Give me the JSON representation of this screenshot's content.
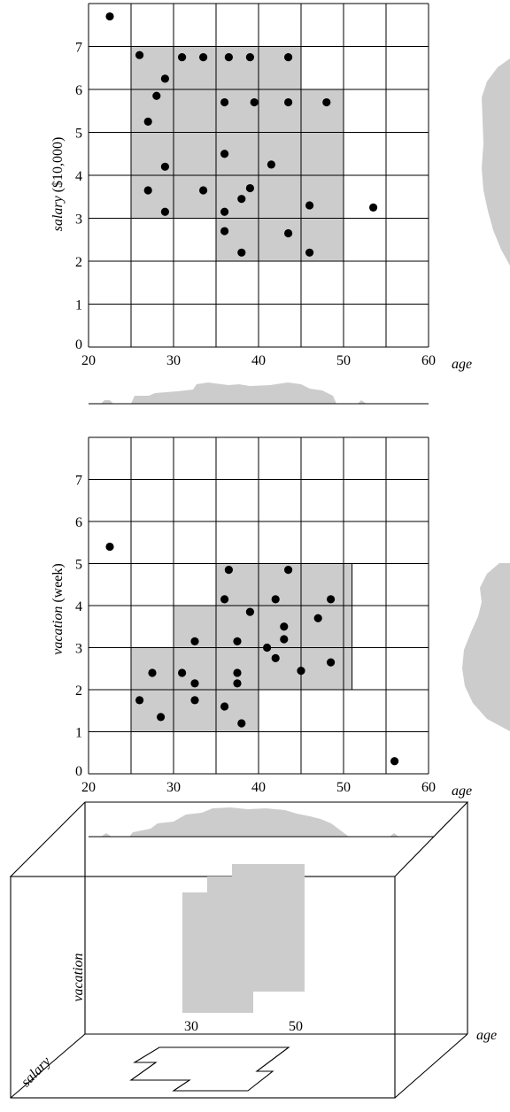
{
  "chart_data": [
    {
      "type": "scatter",
      "xlim": [
        20,
        60
      ],
      "ylim": [
        0,
        8
      ],
      "x_ticks": [
        20,
        30,
        40,
        50,
        60
      ],
      "y_ticks": [
        0,
        1,
        2,
        3,
        4,
        5,
        6,
        7
      ],
      "xlabel": "age",
      "ylabel": {
        "italic": "salary",
        "rest": " ($10,000)"
      },
      "points": [
        [
          22.5,
          7.7
        ],
        [
          26,
          6.8
        ],
        [
          31,
          6.75
        ],
        [
          33.5,
          6.75
        ],
        [
          36.5,
          6.75
        ],
        [
          39,
          6.75
        ],
        [
          43.5,
          6.75
        ],
        [
          29,
          6.25
        ],
        [
          28,
          5.85
        ],
        [
          27,
          5.25
        ],
        [
          36,
          5.7
        ],
        [
          39.5,
          5.7
        ],
        [
          43.5,
          5.7
        ],
        [
          48,
          5.7
        ],
        [
          36,
          4.5
        ],
        [
          41.5,
          4.25
        ],
        [
          29,
          4.2
        ],
        [
          27,
          3.65
        ],
        [
          33.5,
          3.65
        ],
        [
          39,
          3.7
        ],
        [
          38,
          3.45
        ],
        [
          29,
          3.15
        ],
        [
          36,
          3.15
        ],
        [
          46,
          3.3
        ],
        [
          53.5,
          3.25
        ],
        [
          36,
          2.7
        ],
        [
          43.5,
          2.65
        ],
        [
          38,
          2.2
        ],
        [
          46,
          2.2
        ]
      ],
      "regions": [
        {
          "x": [
            25,
            35
          ],
          "y": [
            3,
            7
          ]
        },
        {
          "x": [
            35,
            45
          ],
          "y": [
            6,
            7
          ]
        },
        {
          "x": [
            35,
            50
          ],
          "y": [
            2,
            6
          ]
        }
      ]
    },
    {
      "type": "scatter",
      "xlim": [
        20,
        60
      ],
      "ylim": [
        0,
        8
      ],
      "x_ticks": [
        20,
        30,
        40,
        50,
        60
      ],
      "y_ticks": [
        0,
        1,
        2,
        3,
        4,
        5,
        6,
        7
      ],
      "xlabel": "age",
      "ylabel": {
        "italic": "vacation",
        "rest": " (week)"
      },
      "points": [
        [
          22.5,
          5.4
        ],
        [
          36.5,
          4.85
        ],
        [
          43.5,
          4.85
        ],
        [
          36,
          4.15
        ],
        [
          42,
          4.15
        ],
        [
          48.5,
          4.15
        ],
        [
          39,
          3.85
        ],
        [
          47,
          3.7
        ],
        [
          43,
          3.5
        ],
        [
          32.5,
          3.15
        ],
        [
          37.5,
          3.15
        ],
        [
          43,
          3.2
        ],
        [
          41,
          3.0
        ],
        [
          42,
          2.75
        ],
        [
          48.5,
          2.65
        ],
        [
          27.5,
          2.4
        ],
        [
          31,
          2.4
        ],
        [
          37.5,
          2.4
        ],
        [
          45,
          2.45
        ],
        [
          32.5,
          2.15
        ],
        [
          37.5,
          2.15
        ],
        [
          26,
          1.75
        ],
        [
          32.5,
          1.75
        ],
        [
          36,
          1.6
        ],
        [
          28.5,
          1.35
        ],
        [
          38,
          1.2
        ],
        [
          56,
          0.3
        ]
      ],
      "regions": [
        {
          "x": [
            25,
            40
          ],
          "y": [
            1,
            3
          ]
        },
        {
          "x": [
            30,
            35
          ],
          "y": [
            3,
            4
          ]
        },
        {
          "x": [
            35,
            51
          ],
          "y": [
            2,
            5
          ]
        }
      ]
    }
  ],
  "box3d": {
    "label_vacation": "vacation",
    "label_salary": "salary",
    "label_age": "age",
    "tick_30": "30",
    "tick_50": "50"
  }
}
